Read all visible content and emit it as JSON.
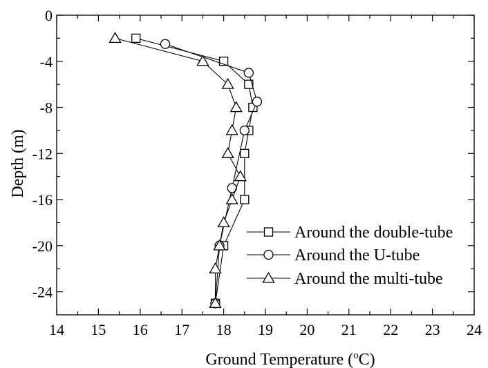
{
  "chart_data": {
    "type": "line",
    "xlabel": "Ground Temperature (",
    "xlabel_sup": "o",
    "xlabel_end": "C)",
    "ylabel": "Depth (m)",
    "xlim": [
      14,
      24
    ],
    "ylim": [
      -26,
      0
    ],
    "x_ticks": [
      14,
      15,
      16,
      17,
      18,
      19,
      20,
      21,
      22,
      23,
      24
    ],
    "x_tick_labels": [
      "14",
      "15",
      "16",
      "17",
      "18",
      "19",
      "20",
      "21",
      "22",
      "23",
      "24"
    ],
    "y_ticks": [
      0,
      -4,
      -8,
      -12,
      -16,
      -20,
      -24
    ],
    "y_tick_labels": [
      "0",
      "-4",
      "-8",
      "-12",
      "-16",
      "-20",
      "-24"
    ],
    "grid": false,
    "legend_position": "bottom-right",
    "series": [
      {
        "name": "Around the double-tube",
        "marker": "square",
        "points": [
          [
            15.9,
            -2
          ],
          [
            18.0,
            -4
          ],
          [
            18.6,
            -6
          ],
          [
            18.7,
            -8
          ],
          [
            18.6,
            -10
          ],
          [
            18.5,
            -12
          ],
          [
            18.5,
            -16
          ],
          [
            18.0,
            -20
          ],
          [
            17.8,
            -25
          ]
        ]
      },
      {
        "name": "Around the U-tube",
        "marker": "circle",
        "points": [
          [
            16.6,
            -2.5
          ],
          [
            18.6,
            -5
          ],
          [
            18.8,
            -7.5
          ],
          [
            18.5,
            -10
          ],
          [
            18.2,
            -15
          ],
          [
            17.9,
            -20
          ],
          [
            17.8,
            -25
          ]
        ]
      },
      {
        "name": "Around the multi-tube",
        "marker": "triangle",
        "points": [
          [
            15.4,
            -2
          ],
          [
            17.5,
            -4
          ],
          [
            18.1,
            -6
          ],
          [
            18.3,
            -8
          ],
          [
            18.2,
            -10
          ],
          [
            18.1,
            -12
          ],
          [
            18.4,
            -14
          ],
          [
            18.2,
            -16
          ],
          [
            18.0,
            -18
          ],
          [
            17.9,
            -20
          ],
          [
            17.8,
            -22
          ],
          [
            17.8,
            -25
          ]
        ]
      }
    ]
  }
}
